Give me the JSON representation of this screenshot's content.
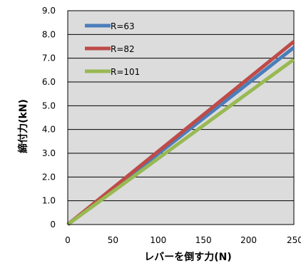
{
  "chart_data": {
    "type": "line",
    "title": "",
    "xlabel": "レバーを倒す力(N)",
    "ylabel": "締付力(kN)",
    "xlim": [
      0,
      250
    ],
    "ylim": [
      0,
      9.0
    ],
    "x_ticks": [
      0,
      50,
      100,
      150,
      200,
      250
    ],
    "y_ticks": [
      0,
      1.0,
      2.0,
      3.0,
      4.0,
      5.0,
      6.0,
      7.0,
      8.0,
      9.0
    ],
    "x_tick_labels": [
      "0",
      "50",
      "100",
      "150",
      "200",
      "250"
    ],
    "y_tick_labels": [
      "0",
      "1.0",
      "2.0",
      "3.0",
      "4.0",
      "5.0",
      "6.0",
      "7.0",
      "8.0",
      "9.0"
    ],
    "grid": "horizontal",
    "plot_background": "#dcdcdc",
    "legend_position": "top-left",
    "series": [
      {
        "name": "R=63",
        "color": "#4a7ebb",
        "x": [
          0,
          250
        ],
        "y": [
          0,
          7.45
        ]
      },
      {
        "name": "R=82",
        "color": "#be4b48",
        "x": [
          0,
          250
        ],
        "y": [
          0,
          7.7
        ]
      },
      {
        "name": "R=101",
        "color": "#98b954",
        "x": [
          0,
          250
        ],
        "y": [
          0,
          6.95
        ]
      }
    ]
  }
}
